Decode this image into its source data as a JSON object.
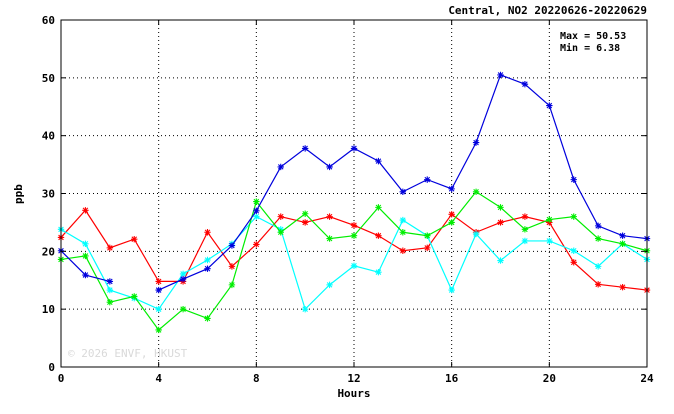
{
  "chart_data": {
    "type": "line",
    "title": "Central, NO2 20220626-20220629",
    "xlabel": "Hours",
    "ylabel": "ppb",
    "xlim": [
      0,
      24
    ],
    "ylim": [
      0,
      60
    ],
    "x_ticks": [
      "0",
      "4",
      "8",
      "12",
      "16",
      "20",
      "24"
    ],
    "y_ticks": [
      "0",
      "10",
      "20",
      "30",
      "40",
      "50",
      "60"
    ],
    "grid": true,
    "x": [
      0,
      1,
      2,
      3,
      4,
      5,
      6,
      7,
      8,
      9,
      10,
      11,
      12,
      13,
      14,
      15,
      16,
      17,
      18,
      19,
      20,
      21,
      22,
      23,
      24
    ],
    "stats": [
      "Max = 50.53",
      "Min =  6.38"
    ],
    "watermark": "© 2026  ENVF, HKUST",
    "series": [
      {
        "color": "#ff0000",
        "values": [
          22.4,
          27.1,
          20.6,
          22.1,
          14.8,
          14.8,
          23.3,
          17.4,
          21.2,
          26.0,
          25.0,
          26.0,
          24.5,
          22.7,
          20.1,
          20.6,
          26.4,
          23.3,
          25.0,
          26.0,
          25.0,
          18.1,
          14.3,
          13.8,
          13.3
        ]
      },
      {
        "color": "#00ffff",
        "values": [
          23.8,
          21.3,
          13.3,
          11.9,
          10.0,
          16.1,
          18.5,
          21.3,
          26.0,
          23.8,
          10.0,
          14.2,
          17.5,
          16.4,
          25.4,
          22.7,
          13.3,
          23.0,
          18.4,
          21.8,
          21.8,
          20.1,
          17.4,
          21.3,
          18.6
        ]
      },
      {
        "color": "#00ee00",
        "values": [
          18.6,
          19.2,
          11.2,
          12.2,
          6.4,
          10.0,
          8.4,
          14.2,
          28.6,
          23.3,
          26.5,
          22.2,
          22.7,
          27.6,
          23.3,
          22.7,
          25.0,
          30.3,
          27.6,
          23.8,
          25.5,
          26.0,
          22.2,
          21.3,
          20.1
        ]
      },
      {
        "color": "#0000dd",
        "values": [
          20.1,
          15.9,
          14.8,
          null,
          13.3,
          15.2,
          17.0,
          21.0,
          27.0,
          34.6,
          37.8,
          34.6,
          37.8,
          35.6,
          30.3,
          32.4,
          30.8,
          38.8,
          50.5,
          48.9,
          45.2,
          32.4,
          24.4,
          22.7,
          22.2
        ]
      }
    ]
  }
}
